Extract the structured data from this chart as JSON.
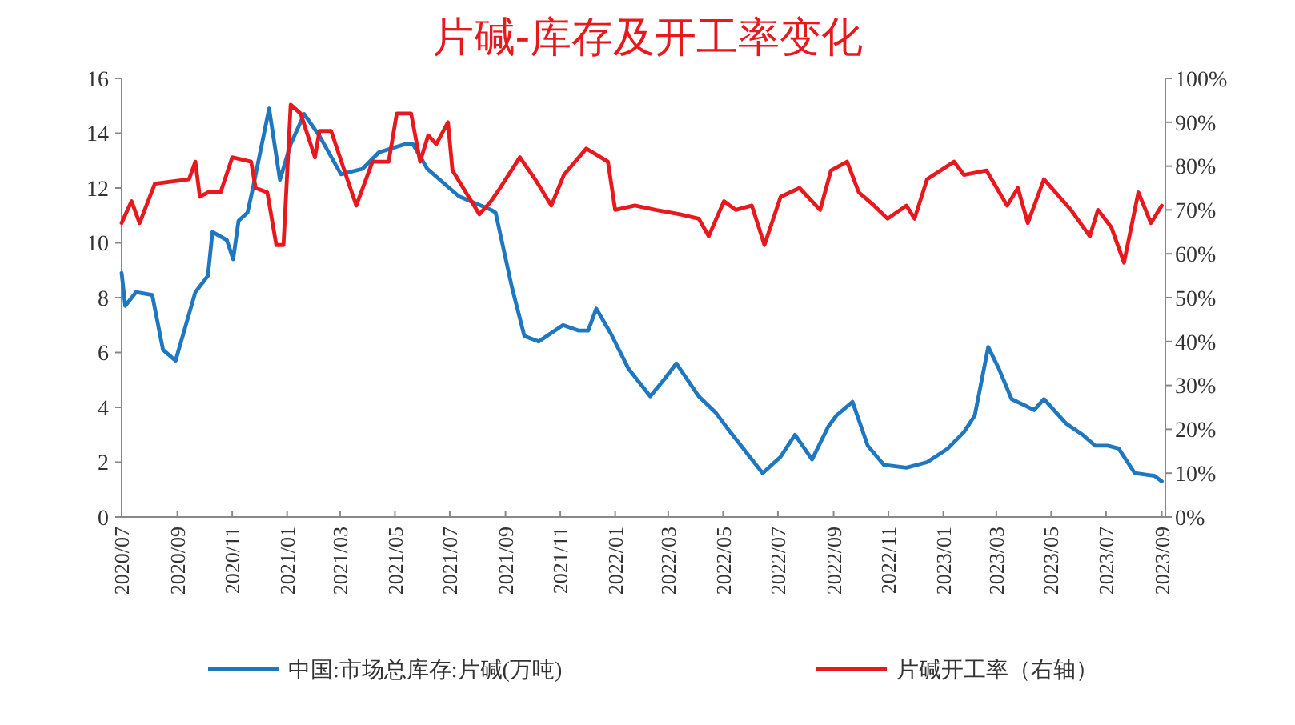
{
  "chart_data": {
    "type": "line",
    "title": "片碱-库存及开工率变化",
    "legend": "bottom",
    "grid": false,
    "line_style": "solid",
    "marker": "none",
    "xlim": [
      "2020-07-01",
      "2023-09-05"
    ],
    "xticks": [
      {
        "value": "2020-07-01",
        "label": "2020/07"
      },
      {
        "value": "2020-09-01",
        "label": "2020/09"
      },
      {
        "value": "2020-11-01",
        "label": "2020/11"
      },
      {
        "value": "2021-01-01",
        "label": "2021/01"
      },
      {
        "value": "2021-03-01",
        "label": "2021/03"
      },
      {
        "value": "2021-05-01",
        "label": "2021/05"
      },
      {
        "value": "2021-07-01",
        "label": "2021/07"
      },
      {
        "value": "2021-09-01",
        "label": "2021/09"
      },
      {
        "value": "2021-11-01",
        "label": "2021/11"
      },
      {
        "value": "2022-01-01",
        "label": "2022/01"
      },
      {
        "value": "2022-03-01",
        "label": "2022/03"
      },
      {
        "value": "2022-05-01",
        "label": "2022/05"
      },
      {
        "value": "2022-07-01",
        "label": "2022/07"
      },
      {
        "value": "2022-09-01",
        "label": "2022/09"
      },
      {
        "value": "2022-11-01",
        "label": "2022/11"
      },
      {
        "value": "2023-01-01",
        "label": "2023/01"
      },
      {
        "value": "2023-03-01",
        "label": "2023/03"
      },
      {
        "value": "2023-05-01",
        "label": "2023/05"
      },
      {
        "value": "2023-07-01",
        "label": "2023/07"
      },
      {
        "value": "2023-09-01",
        "label": "2023/09"
      }
    ],
    "ylim": [
      0,
      16
    ],
    "yticks": [
      0,
      2,
      4,
      6,
      8,
      10,
      12,
      14,
      16
    ],
    "y2lim": [
      0,
      100
    ],
    "y2ticks": [
      {
        "value": 0,
        "label": "0%"
      },
      {
        "value": 10,
        "label": "10%"
      },
      {
        "value": 20,
        "label": "20%"
      },
      {
        "value": 30,
        "label": "30%"
      },
      {
        "value": 40,
        "label": "40%"
      },
      {
        "value": 50,
        "label": "50%"
      },
      {
        "value": 60,
        "label": "60%"
      },
      {
        "value": 70,
        "label": "70%"
      },
      {
        "value": 80,
        "label": "80%"
      },
      {
        "value": 90,
        "label": "90%"
      },
      {
        "value": 100,
        "label": "100%"
      }
    ],
    "series": [
      {
        "name": "中国:市场总库存:片碱(万吨)",
        "color": "#1f77c0",
        "x": [
          "2020-07-01",
          "2020-07-05",
          "2020-07-17",
          "2020-08-04",
          "2020-08-16",
          "2020-08-30",
          "2020-09-21",
          "2020-10-05",
          "2020-10-10",
          "2020-10-26",
          "2020-11-02",
          "2020-11-08",
          "2020-11-18",
          "2020-11-24",
          "2020-12-12",
          "2020-12-24",
          "2021-01-05",
          "2021-01-20",
          "2021-02-06",
          "2021-03-02",
          "2021-03-26",
          "2021-04-13",
          "2021-05-12",
          "2021-05-21",
          "2021-06-06",
          "2021-07-11",
          "2021-08-16",
          "2021-08-21",
          "2021-09-08",
          "2021-09-22",
          "2021-10-08",
          "2021-11-04",
          "2021-11-21",
          "2021-12-02",
          "2021-12-11",
          "2021-12-27",
          "2022-01-16",
          "2022-02-09",
          "2022-02-24",
          "2022-03-10",
          "2022-04-04",
          "2022-04-23",
          "2022-05-09",
          "2022-06-14",
          "2022-07-04",
          "2022-07-20",
          "2022-08-08",
          "2022-08-26",
          "2022-09-04",
          "2022-09-22",
          "2022-10-09",
          "2022-10-27",
          "2022-11-21",
          "2022-12-14",
          "2023-01-06",
          "2023-01-24",
          "2023-02-05",
          "2023-02-20",
          "2023-03-04",
          "2023-03-18",
          "2023-03-31",
          "2023-04-12",
          "2023-04-23",
          "2023-05-18",
          "2023-06-05",
          "2023-06-19",
          "2023-07-03",
          "2023-07-15",
          "2023-08-02",
          "2023-08-24",
          "2023-09-01"
        ],
        "values": [
          8.9,
          7.7,
          8.2,
          8.1,
          6.1,
          5.7,
          8.2,
          8.8,
          10.4,
          10.1,
          9.4,
          10.8,
          11.1,
          12.0,
          14.9,
          12.3,
          13.6,
          14.7,
          13.9,
          12.5,
          12.7,
          13.3,
          13.6,
          13.6,
          12.7,
          11.7,
          11.2,
          11.1,
          8.4,
          6.6,
          6.4,
          7.0,
          6.8,
          6.8,
          7.6,
          6.7,
          5.4,
          4.4,
          5.0,
          5.6,
          4.4,
          3.8,
          3.1,
          1.6,
          2.2,
          3.0,
          2.1,
          3.3,
          3.7,
          4.2,
          2.6,
          1.9,
          1.8,
          2.0,
          2.5,
          3.1,
          3.7,
          6.2,
          5.4,
          4.3,
          4.1,
          3.9,
          4.3,
          3.4,
          3.0,
          2.6,
          2.6,
          2.5,
          1.6,
          1.5,
          1.3
        ]
      },
      {
        "name": "片碱开工率（右轴）",
        "color": "#e8191e",
        "axis": "y2",
        "x": [
          "2020-07-01",
          "2020-07-12",
          "2020-07-21",
          "2020-08-07",
          "2020-09-14",
          "2020-09-21",
          "2020-09-26",
          "2020-10-05",
          "2020-10-19",
          "2020-11-01",
          "2020-11-22",
          "2020-11-27",
          "2020-12-10",
          "2020-12-20",
          "2020-12-28",
          "2021-01-05",
          "2021-01-16",
          "2021-02-01",
          "2021-02-06",
          "2021-02-19",
          "2021-03-09",
          "2021-03-19",
          "2021-04-06",
          "2021-04-24",
          "2021-05-03",
          "2021-05-19",
          "2021-05-29",
          "2021-06-07",
          "2021-06-16",
          "2021-06-29",
          "2021-07-04",
          "2021-08-03",
          "2021-08-16",
          "2021-08-26",
          "2021-09-17",
          "2021-10-04",
          "2021-10-22",
          "2021-11-05",
          "2021-11-30",
          "2021-12-24",
          "2022-01-01",
          "2022-01-23",
          "2022-02-15",
          "2022-03-14",
          "2022-04-04",
          "2022-04-15",
          "2022-05-02",
          "2022-05-15",
          "2022-06-02",
          "2022-06-16",
          "2022-07-04",
          "2022-07-25",
          "2022-08-17",
          "2022-08-29",
          "2022-09-16",
          "2022-09-29",
          "2022-10-16",
          "2022-10-31",
          "2022-11-21",
          "2022-11-30",
          "2022-12-14",
          "2023-01-13",
          "2023-01-24",
          "2023-02-18",
          "2023-03-13",
          "2023-03-25",
          "2023-04-05",
          "2023-04-23",
          "2023-05-23",
          "2023-06-13",
          "2023-06-22",
          "2023-07-07",
          "2023-07-21",
          "2023-08-06",
          "2023-08-20",
          "2023-09-01"
        ],
        "values": [
          67,
          72,
          67,
          76,
          77,
          81,
          73,
          74,
          74,
          82,
          81,
          75,
          74,
          62,
          62,
          94,
          92,
          82,
          88,
          88,
          77,
          71,
          81,
          81,
          92,
          92,
          81,
          87,
          85,
          90,
          79,
          69,
          72,
          75,
          82,
          77,
          71,
          78,
          84,
          81,
          70,
          71,
          70,
          69,
          68,
          64,
          72,
          70,
          71,
          62,
          73,
          75,
          70,
          79,
          81,
          74,
          71,
          68,
          71,
          68,
          77,
          81,
          78,
          79,
          71,
          75,
          67,
          77,
          70,
          64,
          70,
          66,
          58,
          74,
          67,
          71
        ]
      }
    ]
  }
}
